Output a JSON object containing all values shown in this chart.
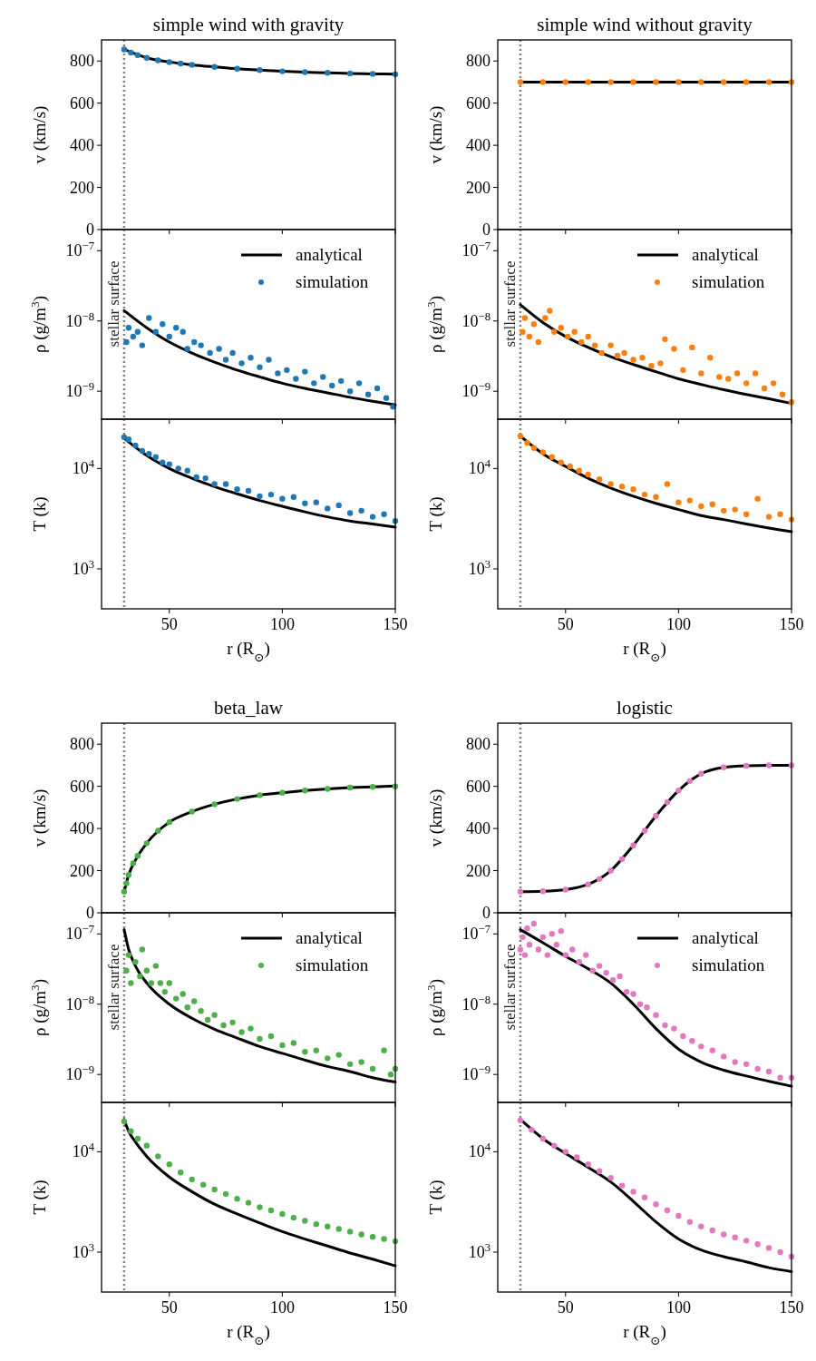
{
  "chart_data": [
    {
      "type": "line",
      "title": "simple wind with gravity",
      "ylabel": "v (km/s)",
      "xlim": [
        20,
        150
      ],
      "xticks": [
        50,
        100,
        150
      ],
      "ylim": [
        0,
        900
      ],
      "yticks": [
        0,
        200,
        400,
        600,
        800
      ],
      "tick_labels": "y",
      "ref_lines": [
        {
          "axis": "x",
          "value": 30,
          "color": "#808080",
          "line_style": "dotted"
        }
      ],
      "series": [
        {
          "type": "line",
          "color": "#000000",
          "x": [
            30,
            40,
            50,
            60,
            70,
            80,
            90,
            100,
            110,
            120,
            130,
            140,
            150
          ],
          "values": [
            855,
            815,
            795,
            782,
            772,
            763,
            757,
            751,
            747,
            744,
            741,
            739,
            737
          ]
        },
        {
          "type": "scatter",
          "color": "#1f77b4",
          "marker": "circle",
          "x": [
            30,
            33,
            36,
            40,
            45,
            50,
            55,
            60,
            70,
            80,
            90,
            100,
            110,
            120,
            130,
            140,
            150
          ],
          "values": [
            855,
            840,
            828,
            815,
            803,
            795,
            788,
            782,
            772,
            763,
            757,
            751,
            747,
            744,
            741,
            739,
            737
          ]
        }
      ]
    },
    {
      "type": "line",
      "ylabel": "ρ (g/m$^{3}$)",
      "xlim": [
        20,
        150
      ],
      "xticks": [
        50,
        100,
        150
      ],
      "ylim": [
        4e-10,
        2e-07
      ],
      "yticks": [
        {
          "value": 1e-09,
          "label": "10$^{−9}$"
        },
        {
          "value": 1e-08,
          "label": "10$^{−8}$"
        },
        {
          "value": 1e-07,
          "label": "10$^{−7}$"
        }
      ],
      "log": true,
      "tick_labels": "y",
      "legend": "top right",
      "ref_lines": [
        {
          "axis": "x",
          "value": 30,
          "label": "stellar surface",
          "color": "#808080",
          "line_style": "dotted"
        }
      ],
      "series": [
        {
          "name": "analytical",
          "type": "line",
          "color": "#000000",
          "x": [
            30,
            40,
            50,
            60,
            70,
            80,
            90,
            100,
            110,
            120,
            130,
            140,
            150
          ],
          "values": [
            1.4e-08,
            8e-09,
            5e-09,
            3.5e-09,
            2.6e-09,
            2e-09,
            1.6e-09,
            1.3e-09,
            1.1e-09,
            9.5e-10,
            8.2e-10,
            7.2e-10,
            6.4e-10
          ]
        },
        {
          "name": "simulation",
          "type": "scatter",
          "color": "#1f77b4",
          "marker": "circle",
          "x": [
            31,
            32,
            34,
            36,
            38,
            41,
            44,
            47,
            50,
            53,
            56,
            58,
            61,
            64,
            68,
            72,
            75,
            78,
            82,
            86,
            90,
            94,
            98,
            102,
            106,
            110,
            114,
            118,
            122,
            126,
            130,
            134,
            138,
            142,
            146,
            149
          ],
          "values": [
            5e-09,
            8e-09,
            6e-09,
            7e-09,
            4.5e-09,
            1.1e-08,
            7e-09,
            9e-09,
            6e-09,
            8e-09,
            7e-09,
            4e-09,
            5e-09,
            4.5e-09,
            3.5e-09,
            4e-09,
            2.8e-09,
            3.5e-09,
            2.5e-09,
            3e-09,
            2.2e-09,
            2.8e-09,
            1.8e-09,
            2e-09,
            1.5e-09,
            1.9e-09,
            1.3e-09,
            1.6e-09,
            1.2e-09,
            1.4e-09,
            1e-09,
            1.3e-09,
            9e-10,
            1.1e-09,
            8e-10,
            6e-10
          ]
        }
      ]
    },
    {
      "type": "line",
      "ylabel": "T (k)",
      "xlabel": "r (R$_{⊙}$)",
      "xlim": [
        20,
        150
      ],
      "xticks": [
        50,
        100,
        150
      ],
      "ylim": [
        400,
        31000
      ],
      "yticks": [
        {
          "value": 1000,
          "label": "10$^{3}$"
        },
        {
          "value": 10000,
          "label": "10$^{4}$"
        }
      ],
      "log": true,
      "ref_lines": [
        {
          "axis": "x",
          "value": 30,
          "color": "#808080",
          "line_style": "dotted"
        }
      ],
      "series": [
        {
          "type": "line",
          "color": "#000000",
          "x": [
            30,
            40,
            50,
            60,
            70,
            80,
            90,
            100,
            110,
            120,
            130,
            140,
            150
          ],
          "values": [
            20000,
            13500,
            10000,
            8000,
            6600,
            5600,
            4800,
            4200,
            3700,
            3300,
            3000,
            2800,
            2600
          ]
        },
        {
          "type": "scatter",
          "color": "#1f77b4",
          "marker": "circle",
          "x": [
            30,
            32,
            35,
            38,
            41,
            44,
            47,
            50,
            54,
            58,
            62,
            66,
            70,
            75,
            80,
            85,
            90,
            95,
            100,
            105,
            110,
            115,
            120,
            125,
            130,
            135,
            140,
            145,
            150
          ],
          "values": [
            20500,
            19500,
            17000,
            15000,
            14000,
            13000,
            11500,
            11000,
            10000,
            9500,
            8200,
            8000,
            7000,
            7000,
            6200,
            6000,
            5300,
            5500,
            5000,
            5200,
            4500,
            4600,
            4000,
            4300,
            3600,
            3800,
            3300,
            3500,
            3000
          ]
        }
      ]
    },
    {
      "type": "line",
      "title": "simple wind without gravity",
      "ylabel": "v (km/s)",
      "xlim": [
        20,
        150
      ],
      "xticks": [
        50,
        100,
        150
      ],
      "ylim": [
        0,
        900
      ],
      "yticks": [
        0,
        200,
        400,
        600,
        800
      ],
      "tick_labels": "y",
      "ref_lines": [
        {
          "axis": "x",
          "value": 30,
          "color": "#808080",
          "line_style": "dotted"
        }
      ],
      "series": [
        {
          "type": "line",
          "color": "#000000",
          "x": [
            30,
            150
          ],
          "values": [
            700,
            700
          ]
        },
        {
          "type": "scatter",
          "color": "#ff7f0e",
          "marker": "circle",
          "x": [
            30,
            40,
            50,
            60,
            70,
            80,
            90,
            100,
            110,
            120,
            130,
            140,
            150
          ],
          "values": [
            700,
            700,
            700,
            700,
            700,
            700,
            700,
            700,
            700,
            700,
            700,
            700,
            700
          ]
        }
      ]
    },
    {
      "type": "line",
      "ylabel": "ρ (g/m$^{3}$)",
      "xlim": [
        20,
        150
      ],
      "xticks": [
        50,
        100,
        150
      ],
      "ylim": [
        4e-10,
        2e-07
      ],
      "yticks": [
        {
          "value": 1e-09,
          "label": "10$^{−9}$"
        },
        {
          "value": 1e-08,
          "label": "10$^{−8}$"
        },
        {
          "value": 1e-07,
          "label": "10$^{−7}$"
        }
      ],
      "log": true,
      "tick_labels": "y",
      "legend": "top right",
      "ref_lines": [
        {
          "axis": "x",
          "value": 30,
          "label": "stellar surface",
          "color": "#808080",
          "line_style": "dotted"
        }
      ],
      "series": [
        {
          "name": "analytical",
          "type": "line",
          "color": "#000000",
          "x": [
            30,
            40,
            50,
            60,
            70,
            80,
            90,
            100,
            110,
            120,
            130,
            140,
            150
          ],
          "values": [
            1.7e-08,
            9.5e-09,
            6e-09,
            4.2e-09,
            3.1e-09,
            2.4e-09,
            1.9e-09,
            1.5e-09,
            1.25e-09,
            1.05e-09,
            9e-10,
            7.8e-10,
            6.7e-10
          ]
        },
        {
          "name": "simulation",
          "type": "scatter",
          "color": "#ff7f0e",
          "marker": "circle",
          "x": [
            31,
            32,
            34,
            36,
            38,
            41,
            43,
            45,
            48,
            51,
            54,
            57,
            60,
            63,
            66,
            70,
            73,
            76,
            80,
            84,
            88,
            92,
            94,
            98,
            102,
            106,
            110,
            114,
            118,
            122,
            126,
            130,
            134,
            138,
            142,
            146,
            150
          ],
          "values": [
            7e-09,
            1.1e-08,
            6e-09,
            9e-09,
            5e-09,
            1.1e-08,
            1.4e-08,
            7e-09,
            8e-09,
            6e-09,
            7e-09,
            5e-09,
            6e-09,
            4.5e-09,
            3.5e-09,
            4.5e-09,
            3.2e-09,
            3.5e-09,
            2.8e-09,
            3e-09,
            2.3e-09,
            2.5e-09,
            5.5e-09,
            4e-09,
            2e-09,
            4.2e-09,
            1.8e-09,
            3e-09,
            1.6e-09,
            1.5e-09,
            1.8e-09,
            1.3e-09,
            1.8e-09,
            1.1e-09,
            1.3e-09,
            9e-10,
            7e-10
          ]
        }
      ]
    },
    {
      "type": "line",
      "ylabel": "T (k)",
      "xlabel": "r (R$_{⊙}$)",
      "xlim": [
        20,
        150
      ],
      "xticks": [
        50,
        100,
        150
      ],
      "ylim": [
        400,
        31000
      ],
      "yticks": [
        {
          "value": 1000,
          "label": "10$^{3}$"
        },
        {
          "value": 10000,
          "label": "10$^{4}$"
        }
      ],
      "log": true,
      "ref_lines": [
        {
          "axis": "x",
          "value": 30,
          "color": "#808080",
          "line_style": "dotted"
        }
      ],
      "series": [
        {
          "type": "line",
          "color": "#000000",
          "x": [
            30,
            40,
            50,
            60,
            70,
            80,
            90,
            100,
            110,
            120,
            130,
            140,
            150
          ],
          "values": [
            21000,
            14000,
            10500,
            8000,
            6400,
            5300,
            4500,
            3900,
            3400,
            3100,
            2800,
            2550,
            2350
          ]
        },
        {
          "type": "scatter",
          "color": "#ff7f0e",
          "marker": "circle",
          "x": [
            30,
            33,
            36,
            40,
            44,
            48,
            52,
            56,
            60,
            65,
            70,
            75,
            80,
            85,
            90,
            95,
            100,
            105,
            110,
            115,
            120,
            125,
            130,
            135,
            140,
            145,
            150
          ],
          "values": [
            21000,
            18000,
            16000,
            14500,
            13000,
            11500,
            10500,
            9500,
            8700,
            7800,
            7000,
            6600,
            6200,
            5500,
            5200,
            7000,
            4600,
            4800,
            4200,
            4400,
            3800,
            3900,
            3500,
            5000,
            3300,
            3500,
            3100
          ]
        }
      ]
    },
    {
      "type": "line",
      "title": "beta_law",
      "ylabel": "v (km/s)",
      "xlim": [
        20,
        150
      ],
      "xticks": [
        50,
        100,
        150
      ],
      "ylim": [
        0,
        900
      ],
      "yticks": [
        0,
        200,
        400,
        600,
        800
      ],
      "tick_labels": "y",
      "ref_lines": [
        {
          "axis": "x",
          "value": 30,
          "color": "#808080",
          "line_style": "dotted"
        }
      ],
      "series": [
        {
          "type": "line",
          "color": "#000000",
          "x": [
            30,
            32,
            35,
            40,
            50,
            60,
            70,
            80,
            90,
            100,
            110,
            120,
            130,
            140,
            150
          ],
          "values": [
            100,
            180,
            250,
            330,
            430,
            480,
            515,
            540,
            558,
            570,
            580,
            588,
            594,
            598,
            602
          ]
        },
        {
          "type": "scatter",
          "color": "#4daf4a",
          "marker": "circle",
          "x": [
            30,
            31,
            32,
            34,
            36,
            40,
            45,
            50,
            60,
            70,
            80,
            90,
            100,
            110,
            120,
            130,
            140,
            150
          ],
          "values": [
            100,
            140,
            180,
            235,
            270,
            330,
            390,
            430,
            480,
            515,
            540,
            558,
            570,
            580,
            588,
            594,
            598,
            600
          ]
        }
      ]
    },
    {
      "type": "line",
      "ylabel": "ρ (g/m$^{3}$)",
      "xlim": [
        20,
        150
      ],
      "xticks": [
        50,
        100,
        150
      ],
      "ylim": [
        4e-10,
        2e-07
      ],
      "yticks": [
        {
          "value": 1e-09,
          "label": "10$^{−9}$"
        },
        {
          "value": 1e-08,
          "label": "10$^{−8}$"
        },
        {
          "value": 1e-07,
          "label": "10$^{−7}$"
        }
      ],
      "log": true,
      "tick_labels": "y",
      "legend": "top right",
      "ref_lines": [
        {
          "axis": "x",
          "value": 30,
          "label": "stellar surface",
          "color": "#808080",
          "line_style": "dotted"
        }
      ],
      "series": [
        {
          "name": "analytical",
          "type": "line",
          "color": "#000000",
          "x": [
            30,
            32,
            35,
            40,
            50,
            60,
            70,
            80,
            90,
            100,
            110,
            120,
            130,
            140,
            150
          ],
          "values": [
            1.15e-07,
            6e-08,
            3.5e-08,
            2e-08,
            1e-08,
            6.3e-09,
            4.4e-09,
            3.3e-09,
            2.5e-09,
            2e-09,
            1.6e-09,
            1.3e-09,
            1.1e-09,
            9e-10,
            7.8e-10
          ]
        },
        {
          "name": "simulation",
          "type": "scatter",
          "color": "#4daf4a",
          "marker": "circle",
          "x": [
            31,
            32,
            33,
            35,
            37,
            38,
            40,
            42,
            44,
            46,
            48,
            50,
            53,
            56,
            58,
            61,
            64,
            67,
            70,
            74,
            78,
            82,
            86,
            90,
            95,
            100,
            105,
            110,
            115,
            120,
            125,
            130,
            135,
            140,
            145,
            148,
            150
          ],
          "values": [
            3e-08,
            5e-08,
            2e-08,
            4e-08,
            2.5e-08,
            6e-08,
            3e-08,
            2e-08,
            3.5e-08,
            2e-08,
            1.5e-08,
            2e-08,
            1.2e-08,
            1.4e-08,
            9e-09,
            1.1e-08,
            8e-09,
            6e-09,
            7e-09,
            5e-09,
            5.5e-09,
            4e-09,
            4.5e-09,
            3.2e-09,
            3.5e-09,
            2.6e-09,
            2.8e-09,
            2.1e-09,
            2.2e-09,
            1.7e-09,
            1.9e-09,
            1.4e-09,
            1.5e-09,
            1.2e-09,
            2.2e-09,
            1e-09,
            1.2e-09
          ]
        }
      ]
    },
    {
      "type": "line",
      "ylabel": "T (k)",
      "xlabel": "r (R$_{⊙}$)",
      "xlim": [
        20,
        150
      ],
      "xticks": [
        50,
        100,
        150
      ],
      "ylim": [
        400,
        31000
      ],
      "yticks": [
        {
          "value": 1000,
          "label": "10$^{3}$"
        },
        {
          "value": 10000,
          "label": "10$^{4}$"
        }
      ],
      "log": true,
      "ref_lines": [
        {
          "axis": "x",
          "value": 30,
          "color": "#808080",
          "line_style": "dotted"
        }
      ],
      "series": [
        {
          "type": "line",
          "color": "#000000",
          "x": [
            30,
            32,
            35,
            40,
            50,
            60,
            70,
            80,
            90,
            100,
            110,
            120,
            130,
            140,
            150
          ],
          "values": [
            21000,
            16000,
            12500,
            9000,
            5600,
            4000,
            3000,
            2400,
            1950,
            1600,
            1350,
            1150,
            980,
            850,
            730
          ]
        },
        {
          "type": "scatter",
          "color": "#4daf4a",
          "marker": "circle",
          "x": [
            30,
            33,
            36,
            40,
            45,
            50,
            55,
            60,
            65,
            70,
            75,
            80,
            85,
            90,
            95,
            100,
            105,
            110,
            115,
            120,
            125,
            130,
            135,
            140,
            145,
            150
          ],
          "values": [
            20000,
            16000,
            13500,
            11500,
            9000,
            7500,
            6200,
            5300,
            4700,
            4200,
            3800,
            3400,
            3100,
            2800,
            2600,
            2400,
            2200,
            2050,
            1900,
            1800,
            1700,
            1600,
            1500,
            1420,
            1350,
            1280
          ]
        }
      ]
    },
    {
      "type": "line",
      "title": "logistic",
      "ylabel": "v (km/s)",
      "xlim": [
        20,
        150
      ],
      "xticks": [
        50,
        100,
        150
      ],
      "ylim": [
        0,
        900
      ],
      "yticks": [
        0,
        200,
        400,
        600,
        800
      ],
      "tick_labels": "y",
      "ref_lines": [
        {
          "axis": "x",
          "value": 30,
          "color": "#808080",
          "line_style": "dotted"
        }
      ],
      "series": [
        {
          "type": "line",
          "color": "#000000",
          "x": [
            30,
            40,
            50,
            60,
            70,
            80,
            90,
            100,
            110,
            120,
            130,
            140,
            150
          ],
          "values": [
            100,
            102,
            110,
            135,
            200,
            320,
            460,
            580,
            660,
            690,
            698,
            700,
            700
          ]
        },
        {
          "type": "scatter",
          "color": "#e377c2",
          "marker": "circle",
          "x": [
            30,
            40,
            50,
            60,
            65,
            70,
            75,
            80,
            85,
            90,
            95,
            100,
            105,
            110,
            120,
            130,
            140,
            150
          ],
          "values": [
            100,
            102,
            110,
            135,
            160,
            200,
            255,
            320,
            390,
            460,
            525,
            580,
            625,
            660,
            690,
            698,
            700,
            700
          ]
        }
      ]
    },
    {
      "type": "line",
      "ylabel": "ρ (g/m$^{3}$)",
      "xlim": [
        20,
        150
      ],
      "xticks": [
        50,
        100,
        150
      ],
      "ylim": [
        4e-10,
        2e-07
      ],
      "yticks": [
        {
          "value": 1e-09,
          "label": "10$^{−9}$"
        },
        {
          "value": 1e-08,
          "label": "10$^{−8}$"
        },
        {
          "value": 1e-07,
          "label": "10$^{−7}$"
        }
      ],
      "log": true,
      "tick_labels": "y",
      "legend": "top right",
      "ref_lines": [
        {
          "axis": "x",
          "value": 30,
          "label": "stellar surface",
          "color": "#808080",
          "line_style": "dotted"
        }
      ],
      "series": [
        {
          "name": "analytical",
          "type": "line",
          "color": "#000000",
          "x": [
            30,
            40,
            50,
            60,
            70,
            80,
            90,
            100,
            110,
            120,
            130,
            140,
            150
          ],
          "values": [
            1.15e-07,
            7.5e-08,
            4.8e-08,
            3.2e-08,
            2e-08,
            1e-08,
            4.5e-09,
            2.3e-09,
            1.5e-09,
            1.15e-09,
            9.5e-10,
            8e-10,
            6.8e-10
          ]
        },
        {
          "name": "simulation",
          "type": "scatter",
          "color": "#e377c2",
          "marker": "circle",
          "x": [
            30,
            31,
            32,
            33,
            34,
            36,
            38,
            40,
            42,
            44,
            46,
            48,
            50,
            53,
            56,
            59,
            62,
            65,
            68,
            71,
            74,
            77,
            80,
            83,
            86,
            90,
            94,
            98,
            102,
            106,
            110,
            115,
            120,
            125,
            130,
            135,
            140,
            145,
            150
          ],
          "values": [
            6e-08,
            9e-08,
            5e-08,
            1.2e-07,
            7e-08,
            1.4e-07,
            6e-08,
            9e-08,
            5e-08,
            1e-07,
            7e-08,
            1.1e-07,
            5e-08,
            6e-08,
            4e-08,
            5e-08,
            3e-08,
            3.5e-08,
            2.8e-08,
            2.2e-08,
            2.5e-08,
            1.5e-08,
            1.4e-08,
            1e-08,
            9e-09,
            7e-09,
            5e-09,
            4.5e-09,
            3.5e-09,
            3e-09,
            2.5e-09,
            2.2e-09,
            1.8e-09,
            1.5e-09,
            1.4e-09,
            1.2e-09,
            1.1e-09,
            9e-10,
            9e-10
          ]
        }
      ]
    },
    {
      "type": "line",
      "ylabel": "T (k)",
      "xlabel": "r (R$_{⊙}$)",
      "xlim": [
        20,
        150
      ],
      "xticks": [
        50,
        100,
        150
      ],
      "ylim": [
        400,
        31000
      ],
      "yticks": [
        {
          "value": 1000,
          "label": "10$^{3}$"
        },
        {
          "value": 10000,
          "label": "10$^{4}$"
        }
      ],
      "log": true,
      "ref_lines": [
        {
          "axis": "x",
          "value": 30,
          "color": "#808080",
          "line_style": "dotted"
        }
      ],
      "series": [
        {
          "type": "line",
          "color": "#000000",
          "x": [
            30,
            40,
            50,
            60,
            70,
            80,
            90,
            100,
            110,
            120,
            130,
            140,
            150
          ],
          "values": [
            21000,
            13500,
            9600,
            7000,
            5000,
            3200,
            2000,
            1350,
            1050,
            900,
            800,
            700,
            640
          ]
        },
        {
          "type": "scatter",
          "color": "#e377c2",
          "marker": "circle",
          "x": [
            30,
            35,
            40,
            45,
            50,
            55,
            60,
            65,
            70,
            75,
            80,
            85,
            90,
            95,
            100,
            105,
            110,
            115,
            120,
            125,
            130,
            135,
            140,
            145,
            150
          ],
          "values": [
            20500,
            16500,
            13500,
            11500,
            10000,
            8800,
            7500,
            6400,
            5500,
            4600,
            4000,
            3500,
            3000,
            2600,
            2300,
            2000,
            1800,
            1650,
            1500,
            1400,
            1300,
            1200,
            1100,
            1000,
            900
          ]
        }
      ]
    }
  ]
}
